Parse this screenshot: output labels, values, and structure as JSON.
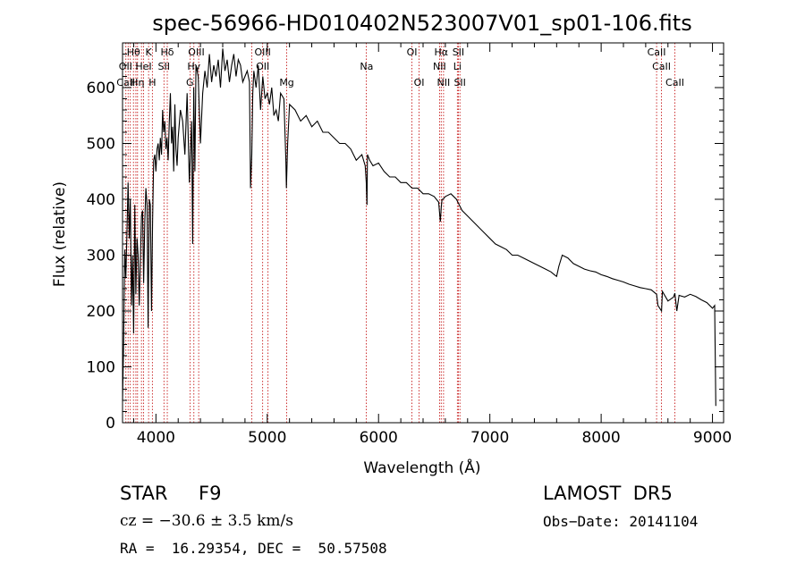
{
  "chart_data": {
    "type": "line",
    "title": "spec-56966-HD010402N523007V01_sp01-106.fits",
    "xlabel": "Wavelength (Å)",
    "ylabel": "Flux (relative)",
    "xlim": [
      3700,
      9100
    ],
    "ylim": [
      0,
      680
    ],
    "x_ticks": [
      4000,
      5000,
      6000,
      7000,
      8000,
      9000
    ],
    "y_ticks": [
      0,
      100,
      200,
      300,
      400,
      500,
      600
    ],
    "grid": false,
    "series": [
      {
        "x": [
          3700,
          3710,
          3720,
          3730,
          3740,
          3750,
          3760,
          3770,
          3780,
          3790,
          3800,
          3810,
          3820,
          3830,
          3840,
          3850,
          3860,
          3870,
          3880,
          3890,
          3900,
          3910,
          3920,
          3930,
          3940,
          3950,
          3960,
          3970,
          3980,
          3990,
          4000,
          4010,
          4020,
          4030,
          4040,
          4050,
          4060,
          4070,
          4080,
          4090,
          4100,
          4110,
          4120,
          4130,
          4140,
          4150,
          4160,
          4170,
          4180,
          4190,
          4200,
          4220,
          4240,
          4260,
          4280,
          4300,
          4320,
          4330,
          4340,
          4350,
          4360,
          4380,
          4400,
          4420,
          4440,
          4460,
          4480,
          4500,
          4520,
          4540,
          4560,
          4580,
          4600,
          4620,
          4640,
          4660,
          4680,
          4700,
          4720,
          4740,
          4760,
          4780,
          4800,
          4820,
          4840,
          4850,
          4861,
          4870,
          4880,
          4900,
          4920,
          4940,
          4960,
          4980,
          5000,
          5020,
          5040,
          5060,
          5080,
          5100,
          5120,
          5150,
          5167,
          5172,
          5183,
          5200,
          5250,
          5300,
          5350,
          5400,
          5450,
          5500,
          5550,
          5600,
          5650,
          5700,
          5750,
          5800,
          5850,
          5880,
          5890,
          5896,
          5900,
          5920,
          5950,
          6000,
          6050,
          6100,
          6150,
          6200,
          6250,
          6300,
          6350,
          6400,
          6450,
          6500,
          6540,
          6555,
          6563,
          6570,
          6580,
          6600,
          6650,
          6700,
          6750,
          6800,
          6850,
          6900,
          6950,
          7000,
          7050,
          7100,
          7150,
          7200,
          7250,
          7300,
          7350,
          7400,
          7450,
          7500,
          7550,
          7580,
          7600,
          7620,
          7650,
          7700,
          7750,
          7800,
          7850,
          7900,
          7950,
          8000,
          8050,
          8100,
          8150,
          8200,
          8250,
          8300,
          8350,
          8400,
          8450,
          8498,
          8510,
          8542,
          8550,
          8600,
          8650,
          8662,
          8680,
          8700,
          8750,
          8800,
          8850,
          8900,
          8950,
          9000,
          9020,
          9030
        ],
        "values": [
          40,
          140,
          310,
          260,
          345,
          430,
          330,
          400,
          210,
          300,
          160,
          390,
          230,
          330,
          300,
          210,
          290,
          370,
          380,
          250,
          360,
          420,
          390,
          170,
          400,
          390,
          200,
          360,
          470,
          480,
          450,
          490,
          500,
          470,
          510,
          480,
          560,
          520,
          540,
          490,
          510,
          470,
          540,
          590,
          500,
          530,
          450,
          570,
          490,
          460,
          510,
          560,
          540,
          480,
          590,
          430,
          540,
          320,
          600,
          450,
          640,
          620,
          500,
          590,
          630,
          600,
          660,
          610,
          640,
          620,
          650,
          600,
          670,
          630,
          650,
          610,
          640,
          660,
          620,
          650,
          640,
          610,
          620,
          630,
          610,
          420,
          480,
          590,
          630,
          600,
          640,
          560,
          620,
          580,
          590,
          570,
          600,
          550,
          560,
          540,
          590,
          580,
          470,
          420,
          500,
          570,
          560,
          540,
          550,
          530,
          540,
          520,
          520,
          510,
          500,
          500,
          490,
          470,
          480,
          460,
          430,
          390,
          480,
          470,
          460,
          465,
          450,
          440,
          440,
          430,
          430,
          420,
          420,
          410,
          410,
          405,
          395,
          360,
          385,
          400,
          400,
          405,
          410,
          400,
          380,
          370,
          360,
          350,
          340,
          330,
          320,
          315,
          310,
          300,
          300,
          295,
          290,
          285,
          280,
          275,
          270,
          265,
          262,
          280,
          300,
          295,
          285,
          280,
          275,
          272,
          270,
          265,
          262,
          258,
          255,
          252,
          248,
          245,
          242,
          240,
          238,
          230,
          210,
          200,
          235,
          218,
          225,
          232,
          200,
          228,
          225,
          230,
          226,
          220,
          215,
          205,
          210,
          30
        ]
      }
    ],
    "lines": {
      "wavelengths": [
        3730,
        3750,
        3770,
        3798,
        3820,
        3835,
        3870,
        3889,
        3934,
        3968,
        4072,
        4102,
        4308,
        4341,
        4384,
        4861,
        4959,
        5007,
        5175,
        5890,
        6300,
        6364,
        6548,
        6563,
        6584,
        6708,
        6717,
        6731,
        8498,
        8542,
        8662
      ],
      "labels": [
        {
          "text": "Hδ",
          "row": 1,
          "x": 4102
        },
        {
          "text": "OIII",
          "row": 1,
          "x": 4363
        },
        {
          "text": "OIII",
          "row": 1,
          "x": 4959
        },
        {
          "text": "OI",
          "row": 1,
          "x": 6300
        },
        {
          "text": "Hα",
          "row": 1,
          "x": 6563
        },
        {
          "text": "SII",
          "row": 1,
          "x": 6717
        },
        {
          "text": "CaII",
          "row": 1,
          "x": 8498
        },
        {
          "text": "Hθ",
          "row": 1,
          "x": 3798
        },
        {
          "text": "K",
          "row": 1,
          "x": 3934
        },
        {
          "text": "OII",
          "row": 2,
          "x": 3727
        },
        {
          "text": "HeI",
          "row": 2,
          "x": 3889
        },
        {
          "text": "SII",
          "row": 2,
          "x": 4072
        },
        {
          "text": "Hγ",
          "row": 2,
          "x": 4341
        },
        {
          "text": "OII",
          "row": 2,
          "x": 4959
        },
        {
          "text": "Na",
          "row": 2,
          "x": 5893
        },
        {
          "text": "NII",
          "row": 2,
          "x": 6548
        },
        {
          "text": "Li",
          "row": 2,
          "x": 6708
        },
        {
          "text": "CaII",
          "row": 2,
          "x": 8542
        },
        {
          "text": "CaII",
          "row": 3,
          "x": 3730
        },
        {
          "text": "Hη",
          "row": 3,
          "x": 3835
        },
        {
          "text": "H",
          "row": 3,
          "x": 3968
        },
        {
          "text": "G",
          "row": 3,
          "x": 4305
        },
        {
          "text": "Mg",
          "row": 3,
          "x": 5175
        },
        {
          "text": "OI",
          "row": 3,
          "x": 6364
        },
        {
          "text": "NII",
          "row": 3,
          "x": 6584
        },
        {
          "text": "SII",
          "row": 3,
          "x": 6731
        },
        {
          "text": "CaII",
          "row": 3,
          "x": 8662
        }
      ]
    }
  },
  "info": {
    "object_class": "STAR",
    "subclass": "F9",
    "survey": "LAMOST  DR5",
    "cz": "cz = −30.6 ± 3.5 km/s",
    "obs_date": "Obs−Date: 20141104",
    "coords": "RA =  16.29354, DEC =  50.57508"
  },
  "colors": {
    "spectrum": "#000000",
    "line_markers": "#c00000",
    "axes": "#000000",
    "background": "#ffffff"
  }
}
